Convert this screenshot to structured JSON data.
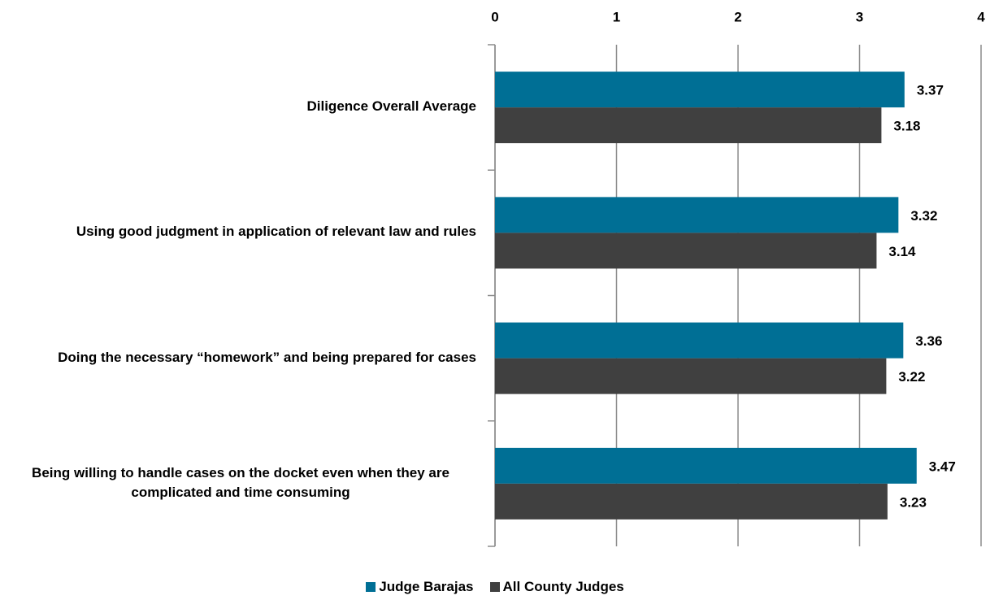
{
  "chart_data": {
    "type": "bar",
    "orientation": "horizontal",
    "categories": [
      "Diligence Overall Average",
      "Using good judgment in application of relevant law and rules",
      "Doing the necessary “homework” and being prepared for cases",
      "Being willing to handle cases on the docket even when they are complicated and time consuming"
    ],
    "series": [
      {
        "name": "Judge Barajas",
        "color": "#006f95",
        "values": [
          3.37,
          3.32,
          3.36,
          3.47
        ]
      },
      {
        "name": "All County Judges",
        "color": "#404040",
        "values": [
          3.18,
          3.14,
          3.22,
          3.23
        ]
      }
    ],
    "xlim": [
      0,
      4
    ],
    "xticks": [
      0,
      1,
      2,
      3,
      4
    ],
    "grid": true,
    "legend": "bottom"
  }
}
